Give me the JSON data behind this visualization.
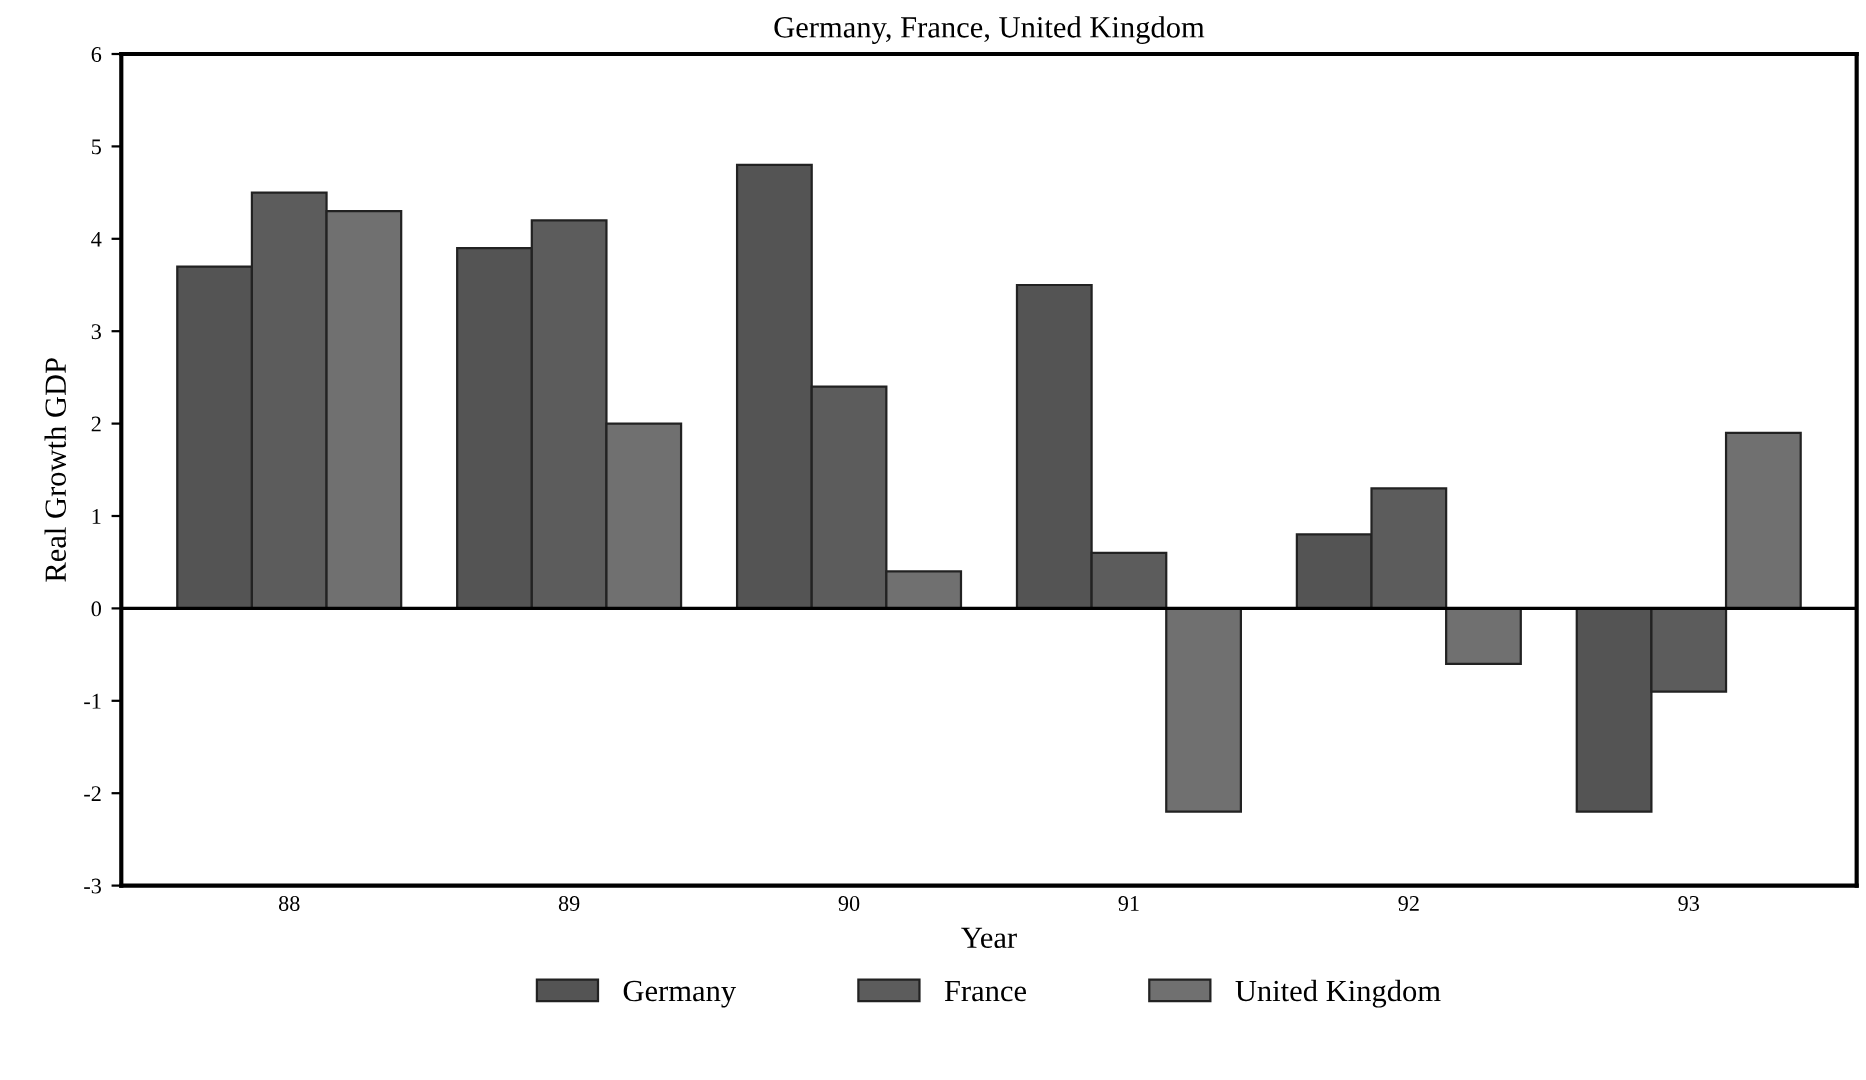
{
  "chart_data": {
    "type": "bar",
    "title": "Germany, France, United Kingdom",
    "xlabel": "Year",
    "ylabel": "Real Growth GDP",
    "categories": [
      "88",
      "89",
      "90",
      "91",
      "92",
      "93"
    ],
    "series": [
      {
        "name": "Germany",
        "color": "#545454",
        "values": [
          3.7,
          3.9,
          4.8,
          3.5,
          0.8,
          -2.2
        ]
      },
      {
        "name": "France",
        "color": "#5c5c5c",
        "values": [
          4.5,
          4.2,
          2.4,
          0.6,
          1.3,
          -0.9
        ]
      },
      {
        "name": "United Kingdom",
        "color": "#707070",
        "values": [
          4.3,
          2.0,
          0.4,
          -2.2,
          -0.6,
          1.9
        ]
      }
    ],
    "ylim": [
      -3,
      6
    ],
    "yticks": [
      -3,
      -2,
      -1,
      0,
      1,
      2,
      3,
      4,
      5,
      6
    ],
    "ref_lines": [
      {
        "axis": "y",
        "value": 0,
        "color": "#000000",
        "line_style": "solid"
      }
    ],
    "legend": "bottom"
  }
}
